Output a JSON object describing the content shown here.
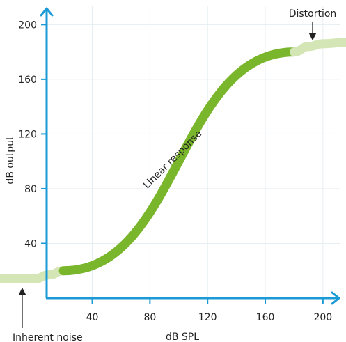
{
  "chart_data": {
    "type": "line",
    "xlabel": "dB SPL",
    "ylabel": "dB output",
    "xlim": [
      -24,
      216
    ],
    "ylim": [
      0,
      218
    ],
    "x_ticks": [
      40,
      80,
      120,
      160,
      200
    ],
    "y_ticks": [
      40,
      80,
      120,
      160,
      200
    ],
    "x_tick_labels": [
      "40",
      "80",
      "120",
      "160",
      "200"
    ],
    "y_tick_labels": [
      "40",
      "80",
      "120",
      "160",
      "200"
    ],
    "grid": true,
    "series": [
      {
        "segment": "noise-floor",
        "color": "#d4e6b5",
        "x": [
          -24,
          -12,
          0,
          10,
          20
        ],
        "y": [
          14,
          14,
          14,
          17,
          20
        ]
      },
      {
        "segment": "linear",
        "color": "#7ab62b",
        "x": [
          20,
          180
        ],
        "y": [
          20,
          180
        ]
      },
      {
        "segment": "distortion",
        "color": "#d4e6b5",
        "x": [
          180,
          190,
          200,
          216
        ],
        "y": [
          180,
          184,
          186,
          187
        ]
      }
    ],
    "annotations": {
      "linear_label": "Linear response",
      "noise_label": "Inherent noise",
      "distortion_label": "Distortion"
    },
    "colors": {
      "axis": "#1b9ad6",
      "grid": "#e6eef2",
      "linear": "#7ab62b",
      "faded": "#d4e6b5"
    }
  }
}
